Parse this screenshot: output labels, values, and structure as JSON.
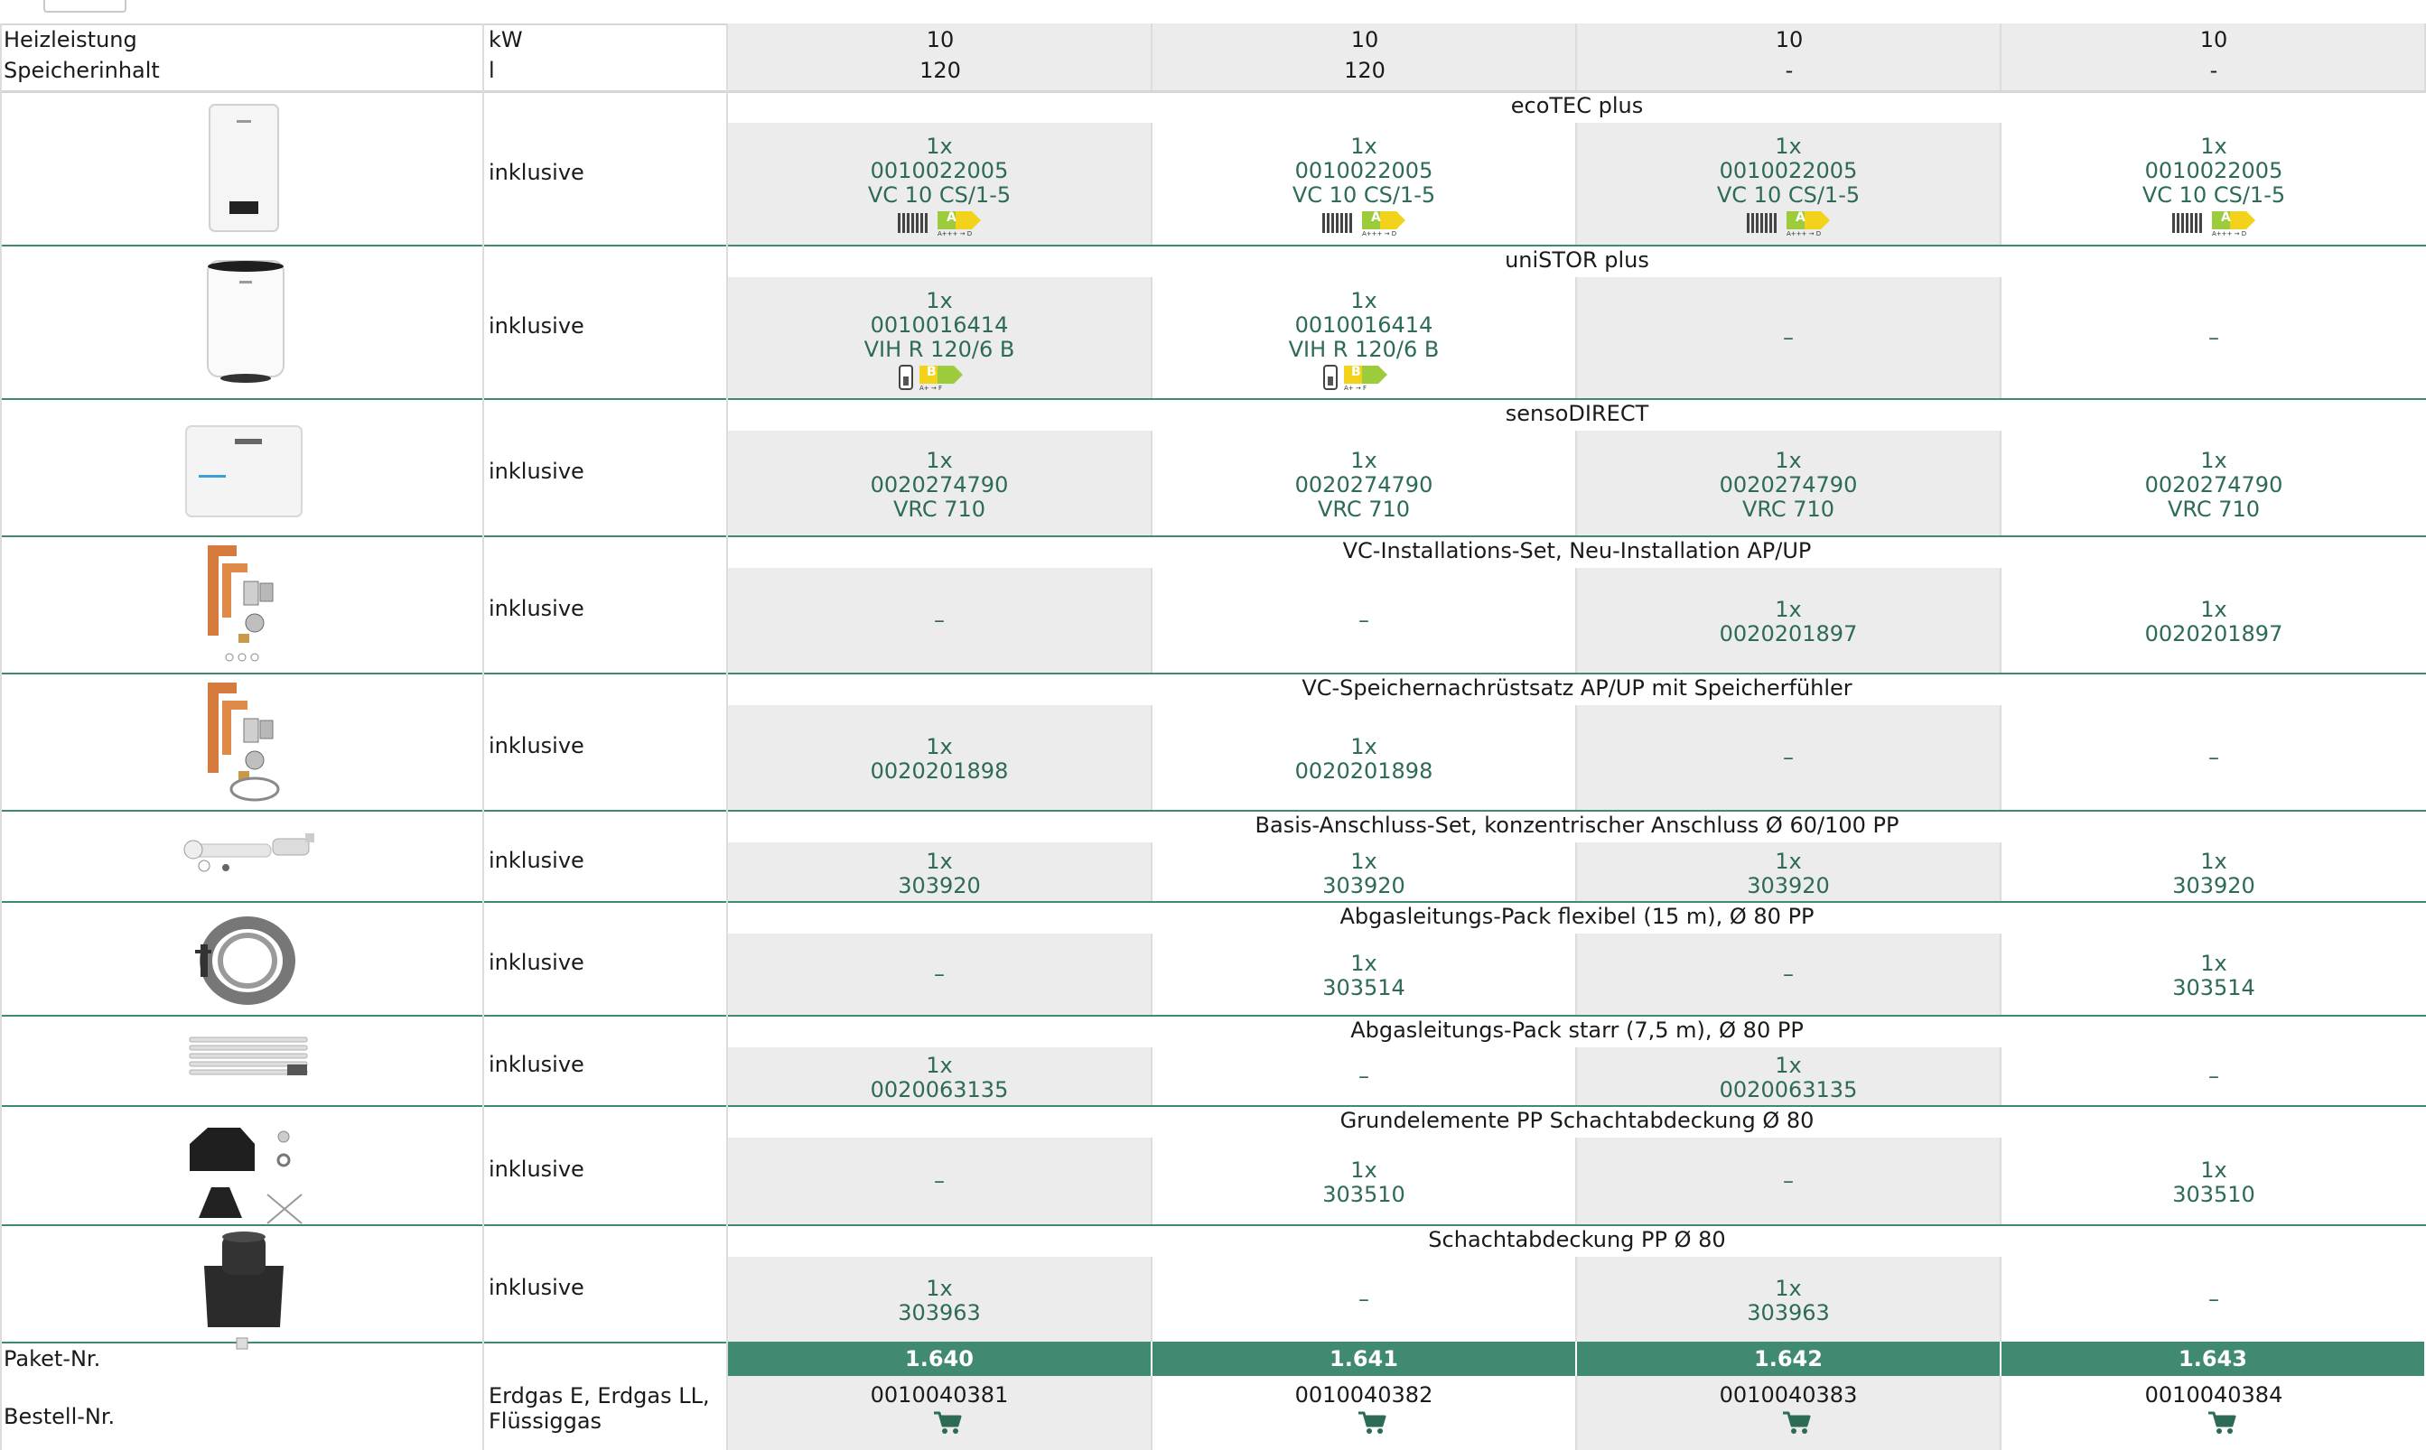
{
  "columns": {
    "heizleistung_label": "Heizleistung",
    "heizleistung_unit": "kW",
    "heizleistung_values": [
      "10",
      "10",
      "10",
      "10"
    ],
    "speicher_label": "Speicherinhalt",
    "speicher_unit": "l",
    "speicher_values": [
      "120",
      "120",
      "-",
      "-"
    ]
  },
  "components": [
    {
      "name": "ecoTEC plus",
      "inclusion": "inklusive",
      "icon": "wall-boiler-image",
      "cells": [
        {
          "qty": "1x",
          "article": "0010022005",
          "model": "VC 10 CS/1-5",
          "badge": "heating-energy-label-icon",
          "label_class": "A",
          "label_range": "A+++ → D"
        },
        {
          "qty": "1x",
          "article": "0010022005",
          "model": "VC 10 CS/1-5",
          "badge": "heating-energy-label-icon",
          "label_class": "A",
          "label_range": "A+++ → D"
        },
        {
          "qty": "1x",
          "article": "0010022005",
          "model": "VC 10 CS/1-5",
          "badge": "heating-energy-label-icon",
          "label_class": "A",
          "label_range": "A+++ → D"
        },
        {
          "qty": "1x",
          "article": "0010022005",
          "model": "VC 10 CS/1-5",
          "badge": "heating-energy-label-icon",
          "label_class": "A",
          "label_range": "A+++ → D"
        }
      ]
    },
    {
      "name": "uniSTOR plus",
      "inclusion": "inklusive",
      "icon": "storage-tank-image",
      "cells": [
        {
          "qty": "1x",
          "article": "0010016414",
          "model": "VIH R 120/6 B",
          "badge": "water-energy-label-icon",
          "label_class": "B",
          "label_range": "A+ → F"
        },
        {
          "qty": "1x",
          "article": "0010016414",
          "model": "VIH R 120/6 B",
          "badge": "water-energy-label-icon",
          "label_class": "B",
          "label_range": "A+ → F"
        },
        {
          "dash": "–"
        },
        {
          "dash": "–"
        }
      ]
    },
    {
      "name": "sensoDIRECT",
      "inclusion": "inklusive",
      "icon": "controller-image",
      "cells": [
        {
          "qty": "1x",
          "article": "0020274790",
          "model": "VRC 710"
        },
        {
          "qty": "1x",
          "article": "0020274790",
          "model": "VRC 710"
        },
        {
          "qty": "1x",
          "article": "0020274790",
          "model": "VRC 710"
        },
        {
          "qty": "1x",
          "article": "0020274790",
          "model": "VRC 710"
        }
      ]
    },
    {
      "name": "VC-Installations-Set, Neu-Installation AP/UP",
      "inclusion": "inklusive",
      "icon": "installation-set-image",
      "cells": [
        {
          "dash": "–"
        },
        {
          "dash": "–"
        },
        {
          "qty": "1x",
          "article": "0020201897"
        },
        {
          "qty": "1x",
          "article": "0020201897"
        }
      ]
    },
    {
      "name": "VC-Speichernachrüstsatz AP/UP mit Speicherfühler",
      "inclusion": "inklusive",
      "icon": "retrofit-kit-image",
      "cells": [
        {
          "qty": "1x",
          "article": "0020201898"
        },
        {
          "qty": "1x",
          "article": "0020201898"
        },
        {
          "dash": "–"
        },
        {
          "dash": "–"
        }
      ]
    },
    {
      "name": "Basis-Anschluss-Set, konzentrischer Anschluss Ø 60/100 PP",
      "inclusion": "inklusive",
      "icon": "flue-connection-set-image",
      "cells": [
        {
          "qty": "1x",
          "article": "303920"
        },
        {
          "qty": "1x",
          "article": "303920"
        },
        {
          "qty": "1x",
          "article": "303920"
        },
        {
          "qty": "1x",
          "article": "303920"
        }
      ]
    },
    {
      "name": "Abgasleitungs-Pack flexibel (15 m), Ø 80 PP",
      "inclusion": "inklusive",
      "icon": "flexible-flue-pack-image",
      "cells": [
        {
          "dash": "–"
        },
        {
          "qty": "1x",
          "article": "303514"
        },
        {
          "dash": "–"
        },
        {
          "qty": "1x",
          "article": "303514"
        }
      ]
    },
    {
      "name": "Abgasleitungs-Pack starr (7,5 m), Ø 80 PP",
      "inclusion": "inklusive",
      "icon": "rigid-flue-pack-image",
      "cells": [
        {
          "qty": "1x",
          "article": "0020063135"
        },
        {
          "dash": "–"
        },
        {
          "qty": "1x",
          "article": "0020063135"
        },
        {
          "dash": "–"
        }
      ]
    },
    {
      "name": "Grundelemente PP Schachtabdeckung Ø 80",
      "inclusion": "inklusive",
      "icon": "shaft-base-elements-image",
      "cells": [
        {
          "dash": "–"
        },
        {
          "qty": "1x",
          "article": "303510"
        },
        {
          "dash": "–"
        },
        {
          "qty": "1x",
          "article": "303510"
        }
      ]
    },
    {
      "name": "Schachtabdeckung PP Ø 80",
      "inclusion": "inklusive",
      "icon": "shaft-cover-image",
      "cells": [
        {
          "qty": "1x",
          "article": "303963"
        },
        {
          "dash": "–"
        },
        {
          "qty": "1x",
          "article": "303963"
        },
        {
          "dash": "–"
        }
      ]
    }
  ],
  "footer": {
    "paket_label": "Paket-Nr.",
    "paket_values": [
      "1.640",
      "1.641",
      "1.642",
      "1.643"
    ],
    "bestell_label": "Bestell-Nr.",
    "gas_types": "Erdgas E, Erdgas LL, Flüssiggas",
    "bestell_values": [
      "0010040381",
      "0010040382",
      "0010040383",
      "0010040384"
    ],
    "cart_icon": "shopping-cart-icon"
  },
  "colors": {
    "accent_green": "#3f8a70",
    "value_text": "#2d6b55",
    "shaded_cell": "#ececec",
    "energy_label_green": "#9ccb3c",
    "energy_label_yellow": "#f2d21b"
  }
}
